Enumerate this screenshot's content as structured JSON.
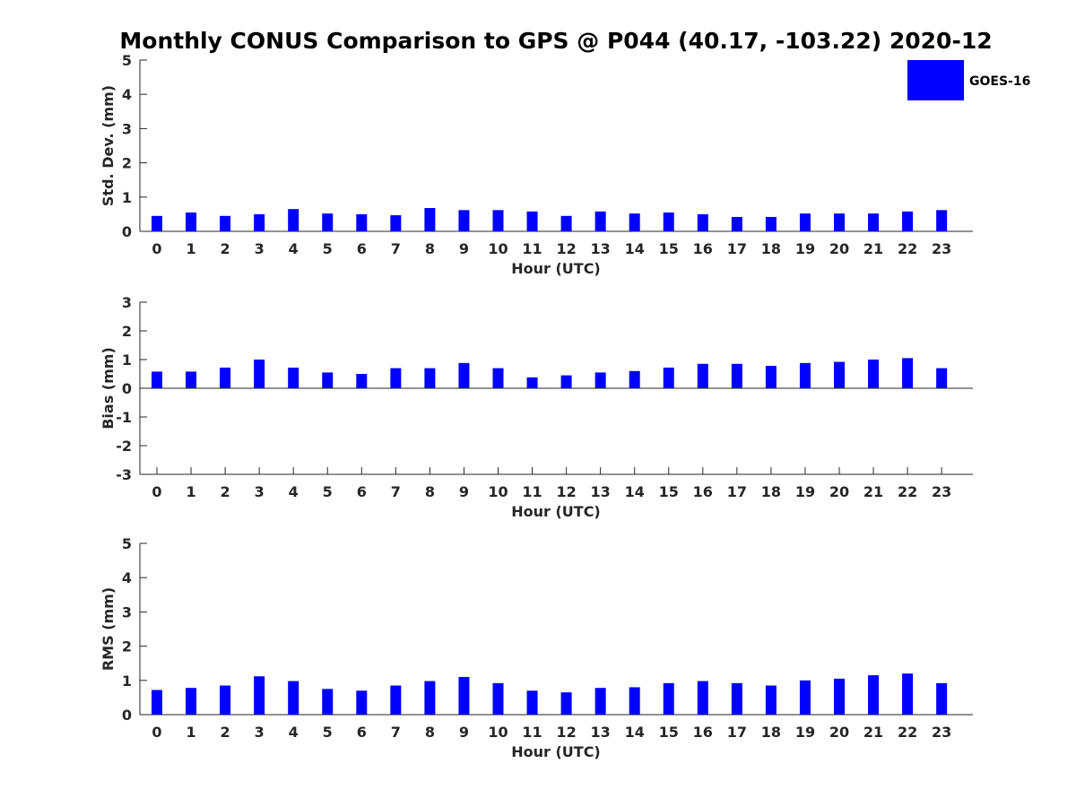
{
  "figure": {
    "title": "Monthly CONUS Comparison to GPS @ P044 (40.17, -103.22) 2020-12"
  },
  "legend": {
    "entry": "GOES-16",
    "placement": "top-right",
    "color": "#0000ff"
  },
  "chart_data": [
    {
      "type": "bar",
      "xlabel": "Hour (UTC)",
      "ylabel": "Std. Dev. (mm)",
      "ylim": [
        0,
        5
      ],
      "yticks": [
        0,
        1,
        2,
        3,
        4,
        5
      ],
      "categories": [
        "0",
        "1",
        "2",
        "3",
        "4",
        "5",
        "6",
        "7",
        "8",
        "9",
        "10",
        "11",
        "12",
        "13",
        "14",
        "15",
        "16",
        "17",
        "18",
        "19",
        "20",
        "21",
        "22",
        "23"
      ],
      "series": [
        {
          "name": "GOES-16",
          "color": "#0000ff",
          "values": [
            0.45,
            0.55,
            0.45,
            0.5,
            0.65,
            0.52,
            0.5,
            0.47,
            0.68,
            0.62,
            0.62,
            0.58,
            0.45,
            0.58,
            0.52,
            0.55,
            0.5,
            0.42,
            0.42,
            0.52,
            0.52,
            0.52,
            0.58,
            0.62
          ]
        }
      ]
    },
    {
      "type": "bar",
      "xlabel": "Hour (UTC)",
      "ylabel": "Bias (mm)",
      "ylim": [
        -3,
        3
      ],
      "yticks": [
        -3,
        -2,
        -1,
        0,
        1,
        2,
        3
      ],
      "categories": [
        "0",
        "1",
        "2",
        "3",
        "4",
        "5",
        "6",
        "7",
        "8",
        "9",
        "10",
        "11",
        "12",
        "13",
        "14",
        "15",
        "16",
        "17",
        "18",
        "19",
        "20",
        "21",
        "22",
        "23"
      ],
      "series": [
        {
          "color": "#0000ff",
          "values": [
            0.58,
            0.58,
            0.72,
            1.0,
            0.72,
            0.55,
            0.5,
            0.7,
            0.7,
            0.88,
            0.7,
            0.38,
            0.45,
            0.55,
            0.6,
            0.72,
            0.85,
            0.85,
            0.78,
            0.88,
            0.92,
            1.0,
            1.05,
            0.7
          ]
        }
      ]
    },
    {
      "type": "bar",
      "xlabel": "Hour (UTC)",
      "ylabel": "RMS (mm)",
      "ylim": [
        0,
        5
      ],
      "yticks": [
        0,
        1,
        2,
        3,
        4,
        5
      ],
      "categories": [
        "0",
        "1",
        "2",
        "3",
        "4",
        "5",
        "6",
        "7",
        "8",
        "9",
        "10",
        "11",
        "12",
        "13",
        "14",
        "15",
        "16",
        "17",
        "18",
        "19",
        "20",
        "21",
        "22",
        "23"
      ],
      "series": [
        {
          "color": "#0000ff",
          "values": [
            0.72,
            0.78,
            0.85,
            1.12,
            0.98,
            0.75,
            0.7,
            0.85,
            0.98,
            1.1,
            0.92,
            0.7,
            0.65,
            0.78,
            0.8,
            0.92,
            0.98,
            0.92,
            0.85,
            1.0,
            1.05,
            1.15,
            1.2,
            0.92
          ]
        }
      ]
    }
  ]
}
